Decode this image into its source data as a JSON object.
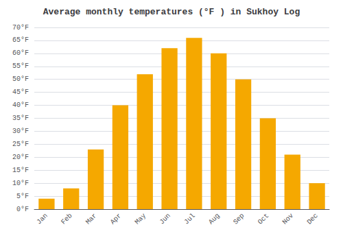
{
  "chart_data": {
    "type": "bar",
    "title": "Average monthly temperatures (°F ) in Sukhoy Log",
    "categories": [
      "Jan",
      "Feb",
      "Mar",
      "Apr",
      "May",
      "Jun",
      "Jul",
      "Aug",
      "Sep",
      "Oct",
      "Nov",
      "Dec"
    ],
    "values": [
      4,
      8,
      23,
      40,
      52,
      62,
      66,
      60,
      50,
      35,
      21,
      10
    ],
    "color": "#F5A800",
    "ylim": [
      0,
      70
    ],
    "yticks": [
      {
        "value": 0,
        "label": "0°F"
      },
      {
        "value": 5,
        "label": "5°F"
      },
      {
        "value": 10,
        "label": "10°F"
      },
      {
        "value": 15,
        "label": "15°F"
      },
      {
        "value": 20,
        "label": "20°F"
      },
      {
        "value": 25,
        "label": "25°F"
      },
      {
        "value": 30,
        "label": "30°F"
      },
      {
        "value": 35,
        "label": "35°F"
      },
      {
        "value": 40,
        "label": "40°F"
      },
      {
        "value": 45,
        "label": "45°F"
      },
      {
        "value": 50,
        "label": "50°F"
      },
      {
        "value": 55,
        "label": "55°F"
      },
      {
        "value": 60,
        "label": "60°F"
      },
      {
        "value": 65,
        "label": "65°F"
      },
      {
        "value": 70,
        "label": "70°F"
      }
    ],
    "grid": true
  }
}
